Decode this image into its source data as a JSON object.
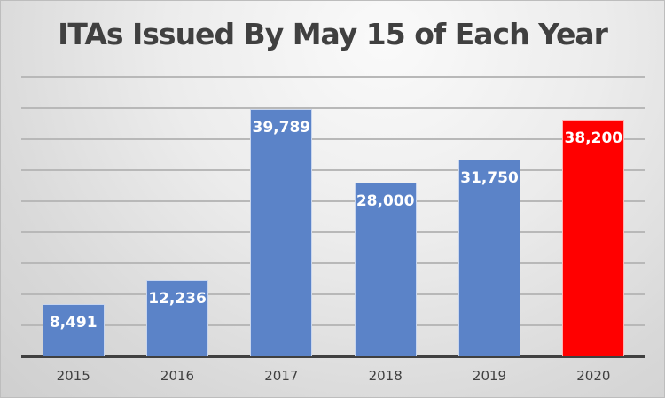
{
  "chart_data": {
    "type": "bar",
    "title": "ITAs Issued By May 15 of Each Year",
    "xlabel": "",
    "ylabel": "",
    "categories": [
      "2015",
      "2016",
      "2017",
      "2018",
      "2019",
      "2020"
    ],
    "values": [
      8491,
      12236,
      39789,
      28000,
      31750,
      38200
    ],
    "data_labels": [
      "8,491",
      "12,236",
      "39,789",
      "28,000",
      "31,750",
      "38,200"
    ],
    "bar_colors": [
      "#5b83c8",
      "#5b83c8",
      "#5b83c8",
      "#5b83c8",
      "#5b83c8",
      "#ff0000"
    ],
    "ylim": [
      0,
      45000
    ],
    "y_gridline_step": 5000,
    "grid": true,
    "y_tick_labels_shown": false,
    "legend": null
  }
}
